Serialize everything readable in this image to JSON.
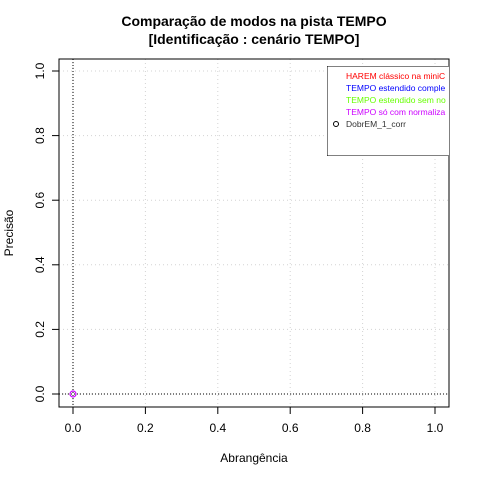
{
  "chart_data": {
    "type": "scatter",
    "title": [
      "Comparação de modos na pista TEMPO",
      "[Identificação : cenário TEMPO]"
    ],
    "xlabel": "Abrangência",
    "ylabel": "Precisão",
    "xlim": [
      0,
      1
    ],
    "ylim": [
      0,
      1
    ],
    "xticks": [
      "0.0",
      "0.2",
      "0.4",
      "0.6",
      "0.8",
      "1.0"
    ],
    "yticks": [
      "0.0",
      "0.2",
      "0.4",
      "0.6",
      "0.8",
      "1.0"
    ],
    "grid": true,
    "reference_lines": {
      "x": 0,
      "y": 0,
      "style": "dotted"
    },
    "legend_position": "top-right",
    "legend": [
      {
        "label": "HAREM clássico na miniC",
        "color": "#ff0000",
        "marker": "none"
      },
      {
        "label": "TEMPO estendido comple",
        "color": "#0000ff",
        "marker": "none"
      },
      {
        "label": "TEMPO estendido sem no",
        "color": "#66ff00",
        "marker": "none"
      },
      {
        "label": "TEMPO só com normaliza",
        "color": "#cc00ff",
        "marker": "none"
      },
      {
        "label": "DobrEM_1_corr",
        "color": "#333333",
        "marker": "circle"
      }
    ],
    "series": [
      {
        "name": "DobrEM_1_corr",
        "x": [
          0.0
        ],
        "y": [
          0.0
        ],
        "color": "#cc00ff",
        "marker": "circle"
      }
    ]
  }
}
